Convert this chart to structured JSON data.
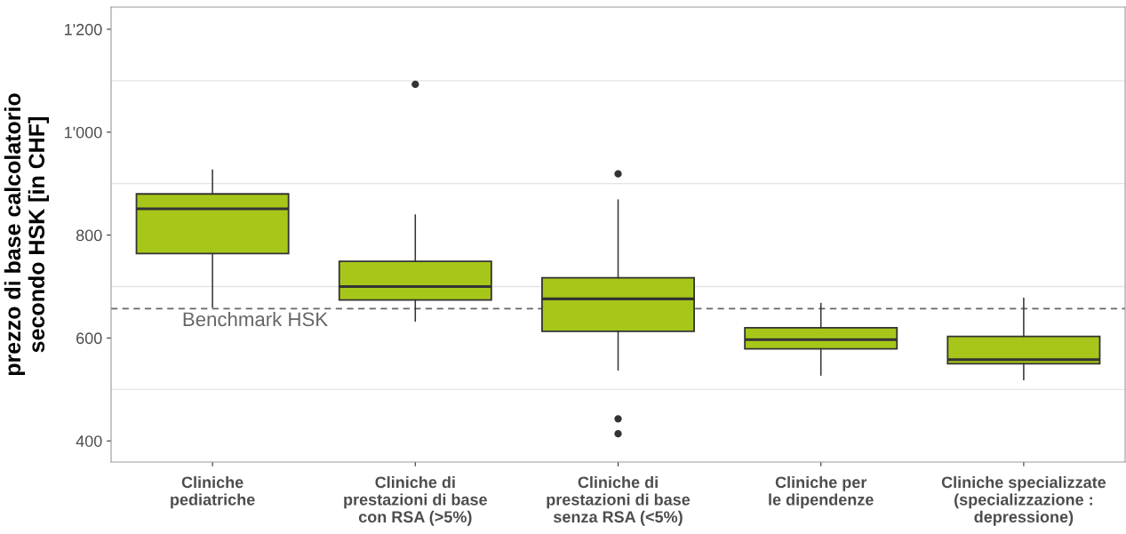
{
  "chart_data": {
    "type": "box",
    "ylabel": "prezzo di base calcolatorio\nsecondo HSK [in CHF]",
    "categories": [
      "Cliniche\npediatriche",
      "Cliniche di\nprestazioni di base\ncon RSA (>5%)",
      "Cliniche di\nprestazioni di base\nsenza RSA (<5%)",
      "Cliniche per\nle dipendenze",
      "Cliniche specializzate\n(specializzazione :\ndepressione)"
    ],
    "color": "#a6c71a",
    "boxes": [
      {
        "low": 660,
        "q1": 764,
        "median": 851,
        "q3": 880,
        "high": 926
      },
      {
        "low": 633,
        "q1": 674,
        "median": 700,
        "q3": 749,
        "high": 839,
        "outliers": [
          1093
        ]
      },
      {
        "low": 538,
        "q1": 613,
        "median": 676,
        "q3": 717,
        "high": 868,
        "outliers": [
          919,
          443,
          414
        ]
      },
      {
        "low": 528,
        "q1": 579,
        "median": 597,
        "q3": 620,
        "high": 667
      },
      {
        "low": 519,
        "q1": 550,
        "median": 558,
        "q3": 603,
        "high": 677
      }
    ],
    "ylim": [
      359,
      1243
    ],
    "yticks": [
      {
        "value": 400,
        "label": "400"
      },
      {
        "value": 600,
        "label": "600"
      },
      {
        "value": 800,
        "label": "800"
      },
      {
        "value": 1000,
        "label": "1'000"
      },
      {
        "value": 1200,
        "label": "1'200"
      }
    ],
    "grid": "y",
    "ref_lines": [
      {
        "axis": "y",
        "value": 657,
        "label": "Benchmark HSK",
        "color": "#666666",
        "line_style": "dashed"
      }
    ]
  }
}
